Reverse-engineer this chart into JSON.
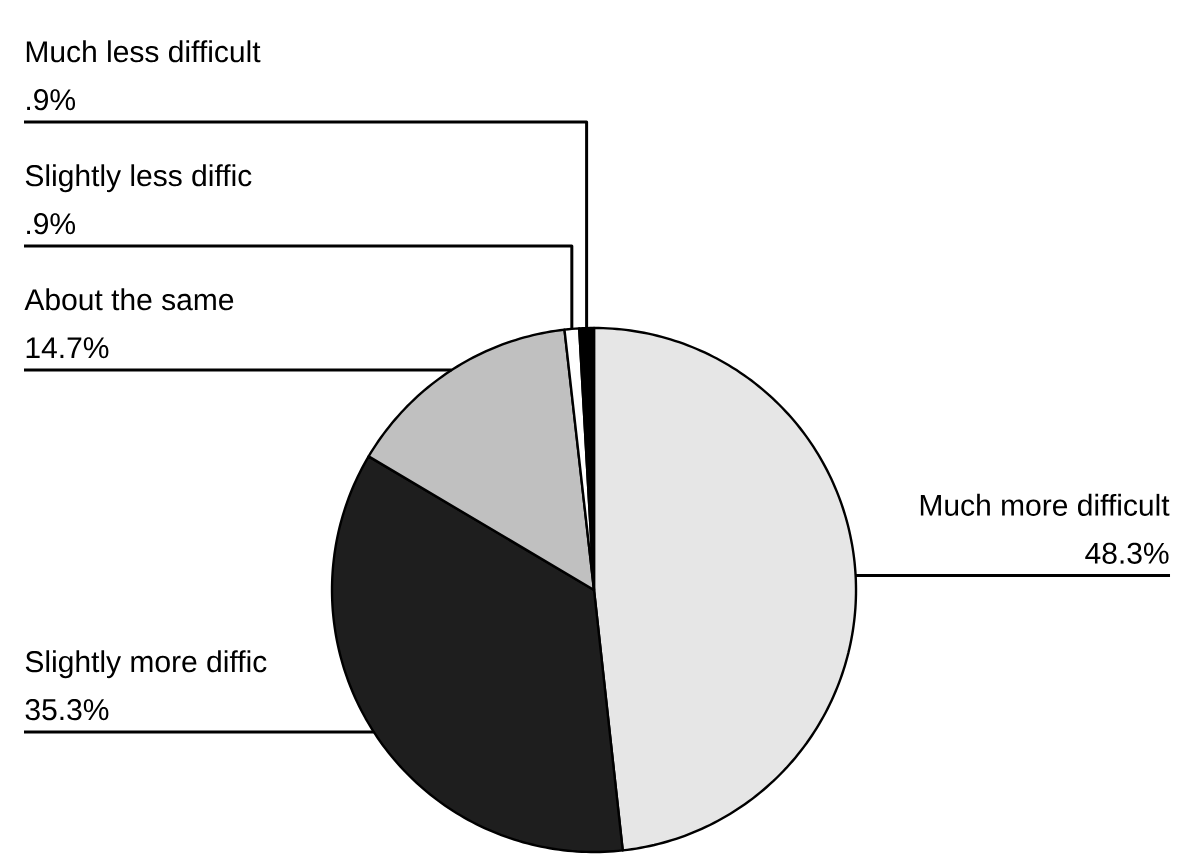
{
  "chart_data": {
    "type": "pie",
    "categories": [
      "Much more difficult",
      "Slightly more diffic",
      "About the same",
      "Slightly less diffic",
      "Much less difficult"
    ],
    "values": [
      48.3,
      35.3,
      14.7,
      0.9,
      0.9
    ],
    "value_labels": [
      "48.3%",
      "35.3%",
      "14.7%",
      ".9%",
      ".9%"
    ],
    "colors": [
      "#e6e6e6",
      "#1e1e1e",
      "#c0c0c0",
      "#ffffff",
      "#000000"
    ]
  }
}
